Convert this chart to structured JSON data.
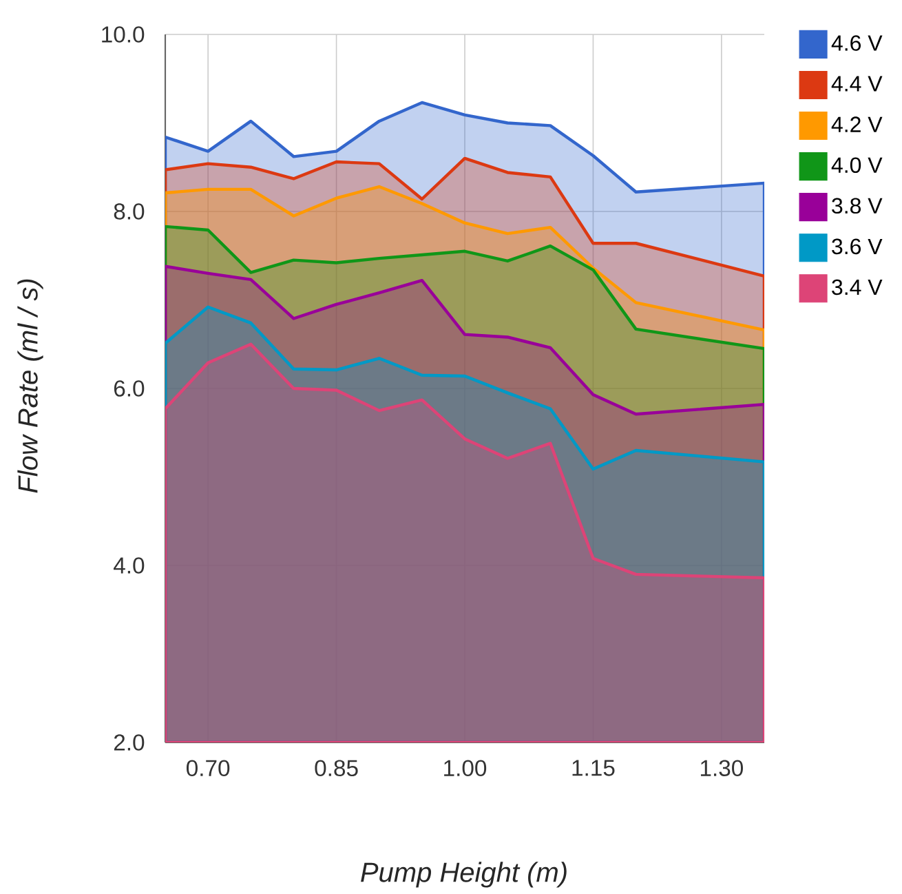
{
  "chart_data": {
    "type": "area",
    "xlabel": "Pump Height (m)",
    "ylabel": "Flow Rate (ml / s)",
    "x": [
      0.65,
      0.7,
      0.75,
      0.8,
      0.85,
      0.9,
      0.95,
      1.0,
      1.05,
      1.1,
      1.15,
      1.2,
      1.35
    ],
    "series": [
      {
        "name": "4.6 V",
        "color": "#3366cc",
        "values": [
          8.84,
          8.68,
          9.02,
          8.62,
          8.68,
          9.02,
          9.23,
          9.09,
          9.0,
          8.97,
          8.63,
          8.22,
          8.32
        ]
      },
      {
        "name": "4.4 V",
        "color": "#dc3912",
        "values": [
          8.47,
          8.54,
          8.5,
          8.37,
          8.56,
          8.54,
          8.14,
          8.6,
          8.44,
          8.39,
          7.64,
          7.64,
          7.27
        ]
      },
      {
        "name": "4.2 V",
        "color": "#ff9900",
        "values": [
          8.21,
          8.25,
          8.25,
          7.95,
          8.15,
          8.28,
          8.09,
          7.87,
          7.75,
          7.82,
          7.36,
          6.97,
          6.66
        ]
      },
      {
        "name": "4.0 V",
        "color": "#109618",
        "values": [
          7.83,
          7.79,
          7.31,
          7.45,
          7.42,
          7.47,
          7.51,
          7.55,
          7.44,
          7.61,
          7.34,
          6.67,
          6.45
        ]
      },
      {
        "name": "3.8 V",
        "color": "#990099",
        "values": [
          7.38,
          7.3,
          7.23,
          6.79,
          6.95,
          7.08,
          7.22,
          6.61,
          6.58,
          6.46,
          5.93,
          5.71,
          5.82
        ]
      },
      {
        "name": "3.6 V",
        "color": "#0099c6",
        "values": [
          6.51,
          6.92,
          6.74,
          6.22,
          6.21,
          6.34,
          6.15,
          6.14,
          5.95,
          5.77,
          5.09,
          5.3,
          5.17
        ]
      },
      {
        "name": "3.4 V",
        "color": "#dd4477",
        "values": [
          5.77,
          6.29,
          6.5,
          6.0,
          5.98,
          5.75,
          5.87,
          5.43,
          5.21,
          5.38,
          4.08,
          3.9,
          3.86
        ]
      }
    ],
    "xlim": [
      0.65,
      1.35
    ],
    "ylim": [
      2,
      10
    ],
    "xticks": [
      {
        "value": 0.7,
        "label": "0.70"
      },
      {
        "value": 0.85,
        "label": "0.85"
      },
      {
        "value": 1.0,
        "label": "1.00"
      },
      {
        "value": 1.15,
        "label": "1.15"
      },
      {
        "value": 1.3,
        "label": "1.30"
      }
    ],
    "yticks": [
      {
        "value": 2,
        "label": "2.0"
      },
      {
        "value": 4,
        "label": "4.0"
      },
      {
        "value": 6,
        "label": "6.0"
      },
      {
        "value": 8,
        "label": "8.0"
      },
      {
        "value": 10,
        "label": "10.0"
      }
    ],
    "grid": true,
    "legend": "top right"
  }
}
